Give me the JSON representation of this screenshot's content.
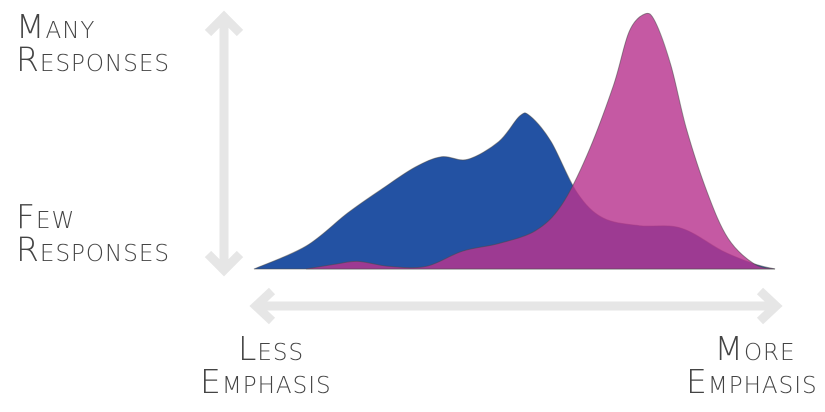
{
  "chart_data": {
    "type": "area",
    "title": "",
    "y_axis": {
      "top_label": [
        "Many",
        "Responses"
      ],
      "bottom_label": [
        "Few",
        "Responses"
      ]
    },
    "x_axis": {
      "left_label": [
        "Less",
        "Emphasis"
      ],
      "right_label": [
        "More",
        "Emphasis"
      ]
    },
    "xlim": [
      0,
      1
    ],
    "ylim": [
      0,
      1
    ],
    "grid": false,
    "legend": "none",
    "series": [
      {
        "color": "#2352a3",
        "x": [
          0,
          0.1,
          0.18,
          0.25,
          0.31,
          0.36,
          0.41,
          0.47,
          0.51,
          0.53,
          0.57,
          0.62,
          0.67,
          0.74,
          0.82,
          0.9,
          0.96,
          1.0
        ],
        "values": [
          0,
          0.09,
          0.22,
          0.32,
          0.4,
          0.44,
          0.43,
          0.5,
          0.6,
          0.6,
          0.5,
          0.3,
          0.2,
          0.17,
          0.16,
          0.07,
          0.02,
          0
        ]
      },
      {
        "color": "#b8348f",
        "x": [
          0.1,
          0.16,
          0.2,
          0.26,
          0.33,
          0.4,
          0.47,
          0.54,
          0.59,
          0.64,
          0.69,
          0.72,
          0.75,
          0.77,
          0.8,
          0.83,
          0.87,
          0.91,
          0.96,
          1.0
        ],
        "values": [
          0,
          0.02,
          0.03,
          0.01,
          0.01,
          0.07,
          0.1,
          0.15,
          0.25,
          0.45,
          0.72,
          0.93,
          1.0,
          0.97,
          0.8,
          0.55,
          0.3,
          0.12,
          0.02,
          0
        ]
      }
    ]
  }
}
